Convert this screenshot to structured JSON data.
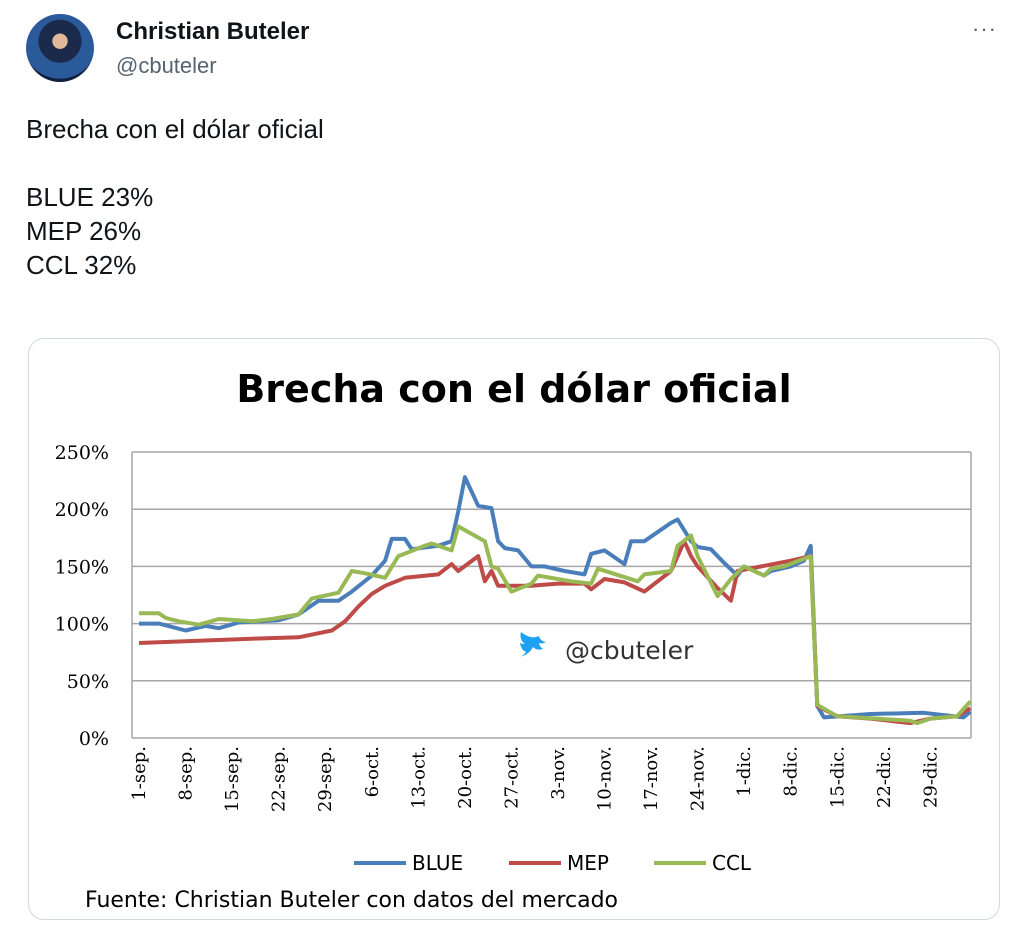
{
  "tweet": {
    "name": "Christian Buteler",
    "handle": "@cbuteler",
    "more": "···",
    "lines": [
      "Brecha con el dólar oficial",
      "",
      "BLUE 23%",
      "MEP 26%",
      "CCL 32%"
    ]
  },
  "chart_data": {
    "type": "line",
    "title": "Brecha con el dólar oficial",
    "watermark": "@cbuteler",
    "source": "Fuente: Christian Buteler con datos del mercado",
    "ylim": [
      0,
      250
    ],
    "yticks": [
      "0%",
      "50%",
      "100%",
      "150%",
      "200%",
      "250%"
    ],
    "xlabels": [
      "1-sep.",
      "8-sep.",
      "15-sep.",
      "22-sep.",
      "29-sep.",
      "6-oct.",
      "13-oct.",
      "20-oct.",
      "27-oct.",
      "3-nov.",
      "10-nov.",
      "17-nov.",
      "24-nov.",
      "1-dic.",
      "8-dic.",
      "15-dic.",
      "22-dic.",
      "29-dic."
    ],
    "x_unit": "days since 1-sep",
    "xlim": [
      0,
      125
    ],
    "series": [
      {
        "name": "BLUE",
        "color": "#4a7ebb",
        "points": [
          [
            0,
            100
          ],
          [
            3,
            100
          ],
          [
            7,
            94
          ],
          [
            10,
            98
          ],
          [
            12,
            96
          ],
          [
            15,
            101
          ],
          [
            21,
            103
          ],
          [
            24,
            108
          ],
          [
            27,
            120
          ],
          [
            30,
            120
          ],
          [
            32,
            128
          ],
          [
            35,
            142
          ],
          [
            37,
            155
          ],
          [
            38,
            174
          ],
          [
            40,
            174
          ],
          [
            41,
            165
          ],
          [
            45,
            168
          ],
          [
            47,
            172
          ],
          [
            48,
            198
          ],
          [
            49,
            228
          ],
          [
            51,
            203
          ],
          [
            53,
            201
          ],
          [
            54,
            172
          ],
          [
            55,
            166
          ],
          [
            57,
            164
          ],
          [
            59,
            150
          ],
          [
            61,
            150
          ],
          [
            64,
            146
          ],
          [
            67,
            143
          ],
          [
            68,
            161
          ],
          [
            70,
            164
          ],
          [
            73,
            152
          ],
          [
            74,
            172
          ],
          [
            76,
            172
          ],
          [
            80,
            188
          ],
          [
            81,
            191
          ],
          [
            83,
            172
          ],
          [
            84,
            167
          ],
          [
            86,
            165
          ],
          [
            88,
            153
          ],
          [
            90,
            142
          ],
          [
            91,
            150
          ],
          [
            94,
            142
          ],
          [
            95,
            146
          ],
          [
            98,
            150
          ],
          [
            100,
            155
          ],
          [
            101,
            168
          ],
          [
            102,
            28
          ],
          [
            103,
            18
          ],
          [
            110,
            21
          ],
          [
            118,
            22
          ],
          [
            124,
            18
          ],
          [
            125,
            23
          ]
        ]
      },
      {
        "name": "MEP",
        "color": "#be4b48",
        "points": [
          [
            0,
            83
          ],
          [
            9,
            85
          ],
          [
            18,
            87
          ],
          [
            24,
            88
          ],
          [
            29,
            94
          ],
          [
            31,
            102
          ],
          [
            33,
            115
          ],
          [
            35,
            126
          ],
          [
            37,
            133
          ],
          [
            40,
            140
          ],
          [
            45,
            143
          ],
          [
            47,
            152
          ],
          [
            48,
            146
          ],
          [
            51,
            159
          ],
          [
            52,
            137
          ],
          [
            53,
            146
          ],
          [
            54,
            133
          ],
          [
            59,
            133
          ],
          [
            63,
            135
          ],
          [
            67,
            135
          ],
          [
            68,
            130
          ],
          [
            70,
            139
          ],
          [
            73,
            136
          ],
          [
            76,
            128
          ],
          [
            80,
            146
          ],
          [
            82,
            172
          ],
          [
            83,
            159
          ],
          [
            84,
            150
          ],
          [
            87,
            131
          ],
          [
            89,
            120
          ],
          [
            90,
            146
          ],
          [
            98,
            155
          ],
          [
            101,
            159
          ],
          [
            102,
            28
          ],
          [
            105,
            19
          ],
          [
            110,
            17
          ],
          [
            116,
            13
          ],
          [
            119,
            17
          ],
          [
            123,
            19
          ],
          [
            125,
            26
          ]
        ]
      },
      {
        "name": "CCL",
        "color": "#98b954",
        "points": [
          [
            0,
            109
          ],
          [
            3,
            109
          ],
          [
            4,
            105
          ],
          [
            6,
            102
          ],
          [
            9,
            99
          ],
          [
            12,
            104
          ],
          [
            17,
            102
          ],
          [
            20,
            104
          ],
          [
            24,
            108
          ],
          [
            26,
            122
          ],
          [
            30,
            127
          ],
          [
            32,
            146
          ],
          [
            34,
            144
          ],
          [
            37,
            140
          ],
          [
            39,
            159
          ],
          [
            43,
            168
          ],
          [
            44,
            170
          ],
          [
            47,
            164
          ],
          [
            48,
            185
          ],
          [
            52,
            172
          ],
          [
            53,
            150
          ],
          [
            54,
            148
          ],
          [
            56,
            128
          ],
          [
            59,
            135
          ],
          [
            60,
            142
          ],
          [
            65,
            137
          ],
          [
            68,
            135
          ],
          [
            69,
            148
          ],
          [
            75,
            137
          ],
          [
            76,
            143
          ],
          [
            80,
            146
          ],
          [
            81,
            168
          ],
          [
            83,
            177
          ],
          [
            84,
            159
          ],
          [
            87,
            124
          ],
          [
            89,
            139
          ],
          [
            91,
            150
          ],
          [
            94,
            142
          ],
          [
            95,
            148
          ],
          [
            97,
            150
          ],
          [
            101,
            159
          ],
          [
            102,
            29
          ],
          [
            105,
            19
          ],
          [
            111,
            17
          ],
          [
            116,
            15
          ],
          [
            117,
            13
          ],
          [
            119,
            17
          ],
          [
            123,
            19
          ],
          [
            125,
            32
          ]
        ]
      }
    ]
  }
}
